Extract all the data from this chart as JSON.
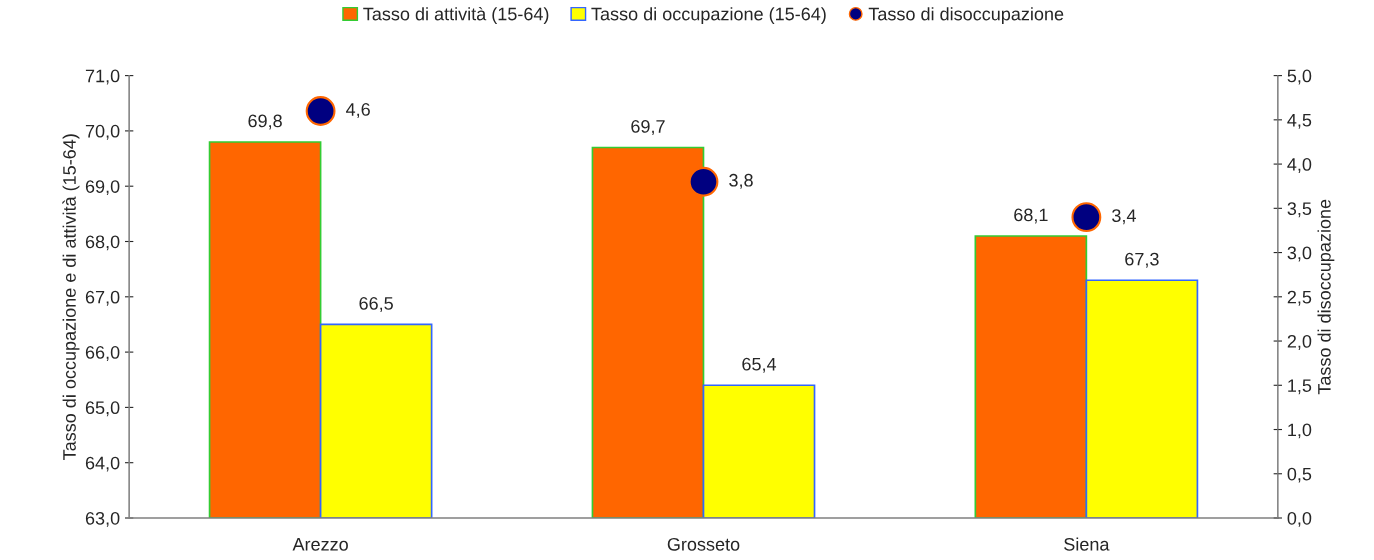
{
  "chart_data": {
    "type": "bar",
    "categories": [
      "Arezzo",
      "Grosseto",
      "Siena"
    ],
    "series": [
      {
        "name": "Tasso di attività (15-64)",
        "color": "#ff6600",
        "values": [
          69.8,
          69.7,
          68.1
        ],
        "value_labels": [
          "69,8",
          "69,7",
          "68,1"
        ]
      },
      {
        "name": "Tasso di occupazione (15-64)",
        "color": "#ffff00",
        "values": [
          66.5,
          65.4,
          67.3
        ],
        "value_labels": [
          "66,5",
          "65,4",
          "67,3"
        ]
      },
      {
        "name": "Tasso di disoccupazione",
        "type": "scatter",
        "axis": "y2",
        "color": "#000080",
        "values": [
          4.6,
          3.8,
          3.4
        ],
        "value_labels": [
          "4,6",
          "3,8",
          "3,4"
        ]
      }
    ],
    "ylabel": "Tasso di occupazione e di attività (15-64)",
    "y2label": "Tasso di disoccupazione",
    "ylim": [
      63,
      71
    ],
    "yticks": [
      {
        "value": 63,
        "label": "63,0"
      },
      {
        "value": 64,
        "label": "64,0"
      },
      {
        "value": 65,
        "label": "65,0"
      },
      {
        "value": 66,
        "label": "66,0"
      },
      {
        "value": 67,
        "label": "67,0"
      },
      {
        "value": 68,
        "label": "68,0"
      },
      {
        "value": 69,
        "label": "69,0"
      },
      {
        "value": 70,
        "label": "70,0"
      },
      {
        "value": 71,
        "label": "71,0"
      }
    ],
    "y2lim": [
      0,
      5
    ],
    "y2ticks": [
      {
        "value": 0,
        "label": "0,0"
      },
      {
        "value": 0.5,
        "label": "0,5"
      },
      {
        "value": 1,
        "label": "1,0"
      },
      {
        "value": 1.5,
        "label": "1,5"
      },
      {
        "value": 2,
        "label": "2,0"
      },
      {
        "value": 2.5,
        "label": "2,5"
      },
      {
        "value": 3,
        "label": "3,0"
      },
      {
        "value": 3.5,
        "label": "3,5"
      },
      {
        "value": 4,
        "label": "4,0"
      },
      {
        "value": 4.5,
        "label": "4,5"
      },
      {
        "value": 5,
        "label": "5,0"
      }
    ],
    "marker": "circle",
    "grid": false,
    "legend": "top"
  }
}
